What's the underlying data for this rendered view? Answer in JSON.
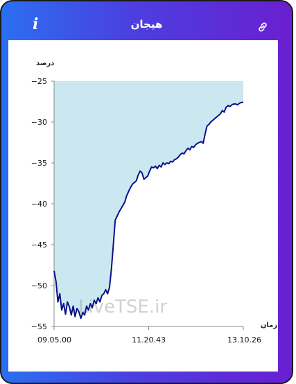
{
  "header": {
    "title": "هیجان",
    "info_icon": "info-icon",
    "link_icon": "link-icon"
  },
  "watermark": "LiveTSE.ir",
  "chart_data": {
    "type": "area",
    "ylabel": "درصد",
    "xlabel": "زمان",
    "ylim": [
      -55,
      -25
    ],
    "yticks": [
      -25,
      -30,
      -35,
      -40,
      -45,
      -50,
      -55
    ],
    "xtick_labels": [
      "09.05.00",
      "11.20.43",
      "13.10.26"
    ],
    "line_color": "#0b0f8a",
    "fill_color": "#cbe7f0",
    "series": [
      {
        "values": [
          -48.2,
          -49.5,
          -52.0,
          -51.0,
          -53.0,
          -52.2,
          -53.5,
          -52.0,
          -52.6,
          -53.6,
          -52.5,
          -53.8,
          -52.8,
          -53.2,
          -54.0,
          -53.3,
          -53.6,
          -52.5,
          -53.0,
          -52.2,
          -52.7,
          -51.8,
          -52.2,
          -51.5,
          -52.0,
          -51.2,
          -51.0,
          -50.5,
          -51.0,
          -50.2,
          -48.0,
          -45.0,
          -42.0,
          -41.5,
          -41.0,
          -40.6,
          -40.2,
          -39.8,
          -39.0,
          -38.5,
          -38.0,
          -37.6,
          -37.4,
          -37.2,
          -36.5,
          -36.0,
          -36.2,
          -37.0,
          -36.8,
          -36.6,
          -36.0,
          -35.5,
          -35.6,
          -35.4,
          -35.7,
          -35.3,
          -35.5,
          -35.0,
          -35.2,
          -35.0,
          -35.1,
          -34.8,
          -34.9,
          -34.6,
          -34.5,
          -34.3,
          -34.0,
          -33.8,
          -33.9,
          -33.5,
          -33.2,
          -33.4,
          -33.0,
          -33.1,
          -32.8,
          -32.6,
          -32.5,
          -32.4,
          -32.6,
          -31.5,
          -30.5,
          -30.3,
          -30.0,
          -29.8,
          -29.6,
          -29.4,
          -29.2,
          -29.0,
          -28.6,
          -28.8,
          -28.2,
          -28.0,
          -28.1,
          -27.9,
          -27.8,
          -27.8,
          -27.9,
          -27.7,
          -27.6,
          -27.6
        ]
      }
    ]
  }
}
